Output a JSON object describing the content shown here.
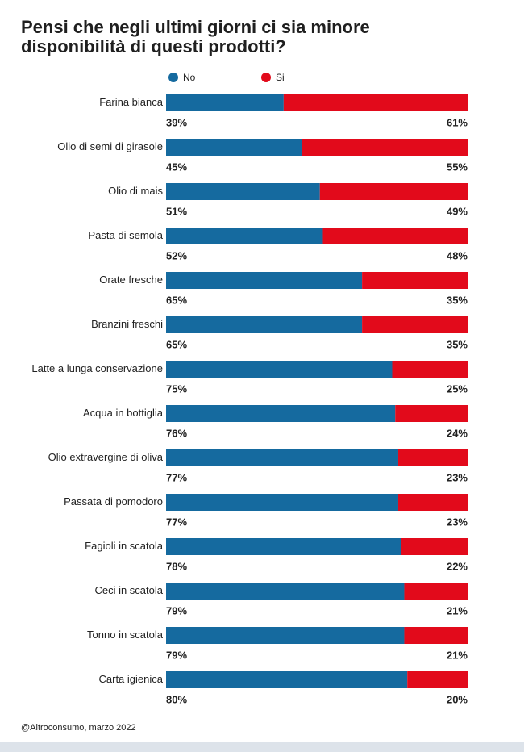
{
  "chart_data": {
    "type": "bar",
    "orientation": "horizontal",
    "stacked": true,
    "title": "Pensi che negli ultimi giorni ci sia minore disponibilità di questi prodotti?",
    "source": "@Altroconsumo, marzo 2022",
    "categories": [
      "Farina bianca",
      "Olio di semi di girasole",
      "Olio di mais",
      "Pasta di semola",
      "Orate fresche",
      "Branzini freschi",
      "Latte a lunga conservazione",
      "Acqua in bottiglia",
      "Olio extravergine di oliva",
      "Passata di pomodoro",
      "Fagioli in scatola",
      "Ceci in scatola",
      "Tonno in scatola",
      "Carta igienica"
    ],
    "xlim": [
      0,
      100
    ],
    "legend": "top",
    "series": [
      {
        "name": "No",
        "color": "#156a9f",
        "values": [
          39,
          45,
          51,
          52,
          65,
          65,
          75,
          76,
          77,
          77,
          78,
          79,
          79,
          80
        ],
        "value_labels": [
          "39%",
          "45%",
          "51%",
          "52%",
          "65%",
          "65%",
          "75%",
          "76%",
          "77%",
          "77%",
          "78%",
          "79%",
          "79%",
          "80%"
        ]
      },
      {
        "name": "Si",
        "color": "#e20a1b",
        "values": [
          61,
          55,
          49,
          48,
          35,
          35,
          25,
          24,
          23,
          23,
          22,
          21,
          21,
          20
        ],
        "value_labels": [
          "61%",
          "55%",
          "49%",
          "48%",
          "35%",
          "35%",
          "25%",
          "24%",
          "23%",
          "23%",
          "22%",
          "21%",
          "21%",
          "20%"
        ]
      }
    ]
  }
}
